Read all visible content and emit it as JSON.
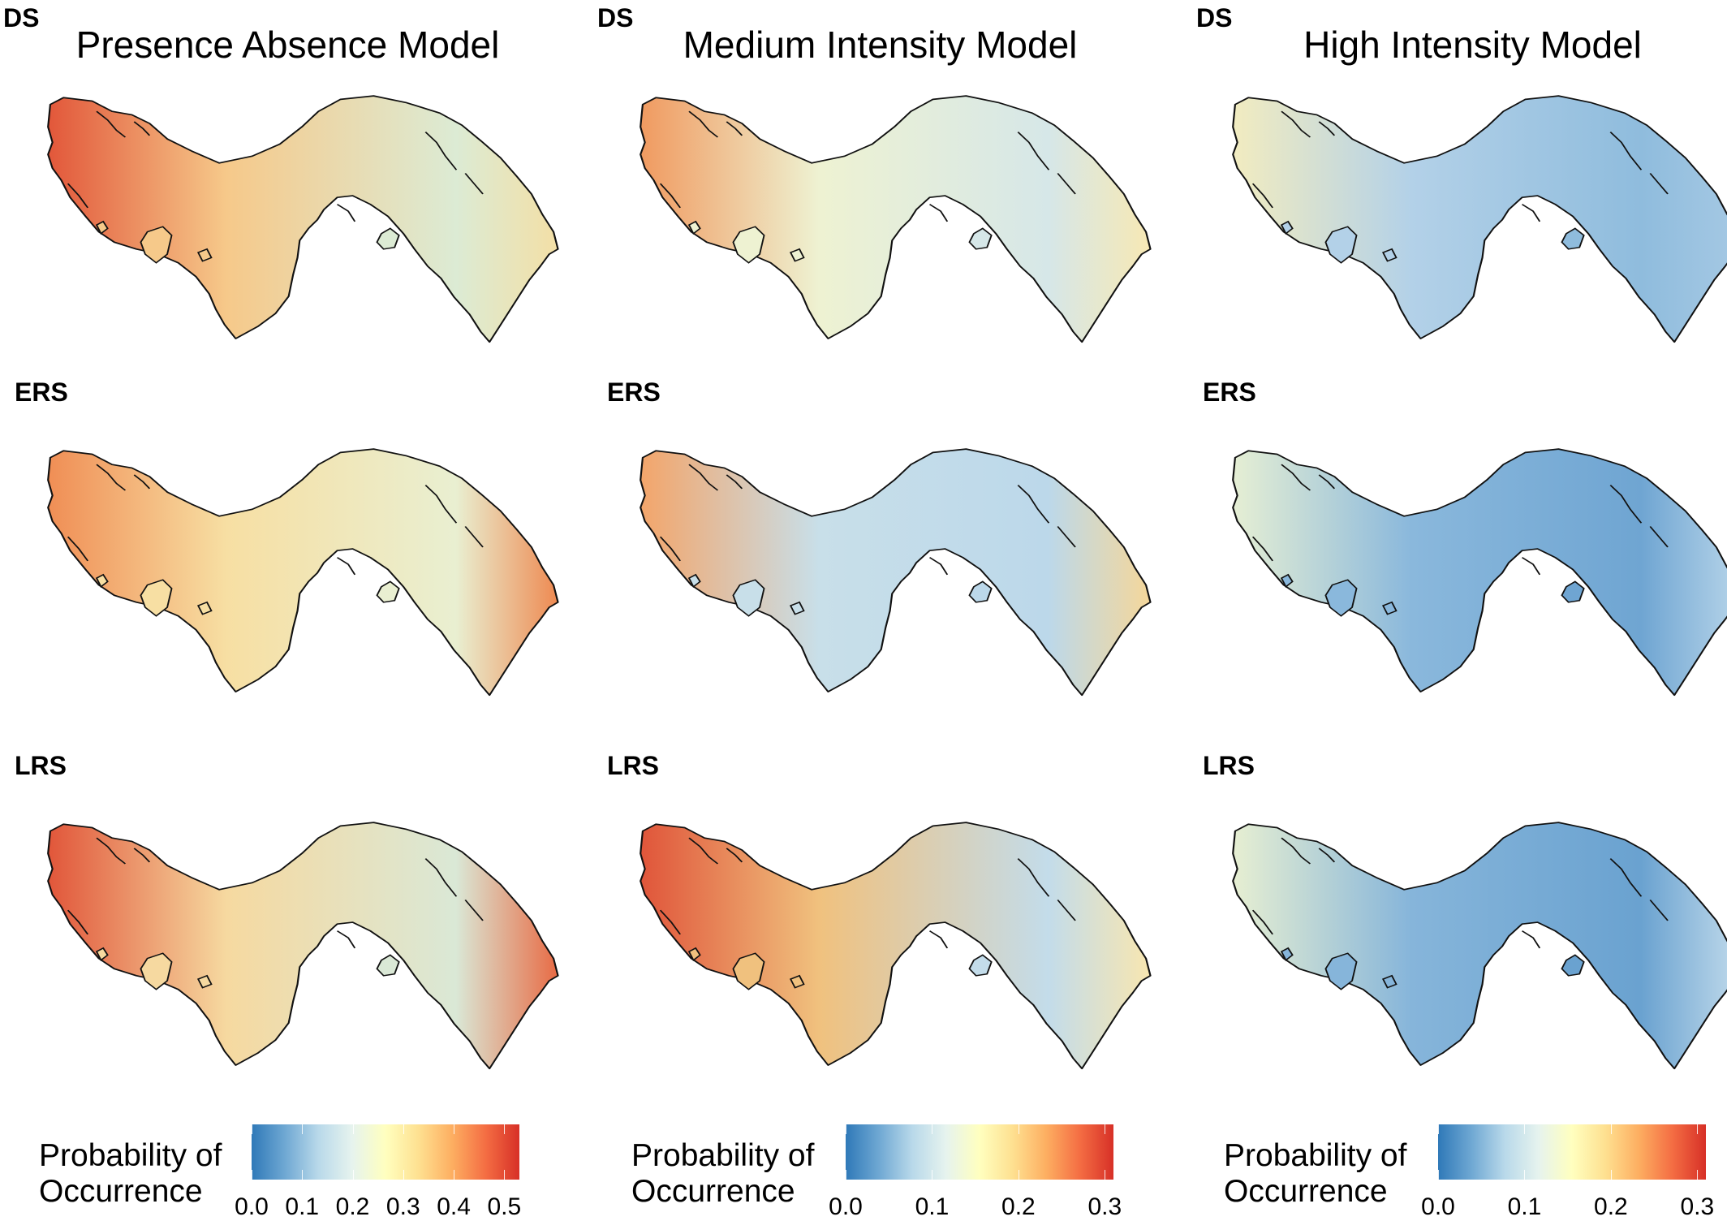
{
  "columns": [
    {
      "title": "Presence Absence Model",
      "panels": [
        "DS",
        "ERS",
        "LRS"
      ],
      "legend": {
        "title_line1": "Probability of",
        "title_line2": "Occurrence",
        "ticks": [
          "0.0",
          "0.1",
          "0.2",
          "0.3",
          "0.4",
          "0.5"
        ],
        "max": 0.53
      },
      "maps": [
        {
          "west": "#e2573a",
          "mid": "#f6c98a",
          "east": "#dcebd4",
          "tip": "#f3dfa6"
        },
        {
          "west": "#f08e55",
          "mid": "#f7dfa3",
          "east": "#e9efd1",
          "tip": "#ee8a52"
        },
        {
          "west": "#e1563a",
          "mid": "#f6d9a0",
          "east": "#dae8d6",
          "tip": "#e86b45"
        }
      ]
    },
    {
      "title": "Medium Intensity Model",
      "panels": [
        "DS",
        "ERS",
        "LRS"
      ],
      "legend": {
        "title_line1": "Probability of",
        "title_line2": "Occurrence",
        "ticks": [
          "0.0",
          "0.1",
          "0.2",
          "0.3"
        ],
        "max": 0.31
      },
      "maps": [
        {
          "west": "#f09a60",
          "mid": "#eef2d2",
          "east": "#d6e7e8",
          "tip": "#f7e8b4"
        },
        {
          "west": "#f3a56a",
          "mid": "#c8dfe9",
          "east": "#bcd8ea",
          "tip": "#f5d79a"
        },
        {
          "west": "#e0553a",
          "mid": "#f0c17e",
          "east": "#c3dcea",
          "tip": "#f8e6b0"
        }
      ]
    },
    {
      "title": "High Intensity Model",
      "panels": [
        "DS",
        "ERS",
        "LRS"
      ],
      "legend": {
        "title_line1": "Probability of",
        "title_line2": "Occurrence",
        "ticks": [
          "0.0",
          "0.1",
          "0.2",
          "0.3"
        ],
        "max": 0.31
      },
      "maps": [
        {
          "west": "#f2ecc0",
          "mid": "#b3d1e8",
          "east": "#8fbcdd",
          "tip": "#a6c9e4"
        },
        {
          "west": "#e6efd4",
          "mid": "#8ab8dc",
          "east": "#6fa5d2",
          "tip": "#b9d6ea"
        },
        {
          "west": "#e7efd2",
          "mid": "#86b5da",
          "east": "#6aa2d0",
          "tip": "#c3dcec"
        }
      ]
    }
  ],
  "colors": {
    "scale": [
      "#2f79b8",
      "#6fa8d3",
      "#b9d9ea",
      "#e6f3ee",
      "#ffffbf",
      "#fee090",
      "#fdae61",
      "#f46d43",
      "#d73027"
    ],
    "outline": "#111111"
  }
}
